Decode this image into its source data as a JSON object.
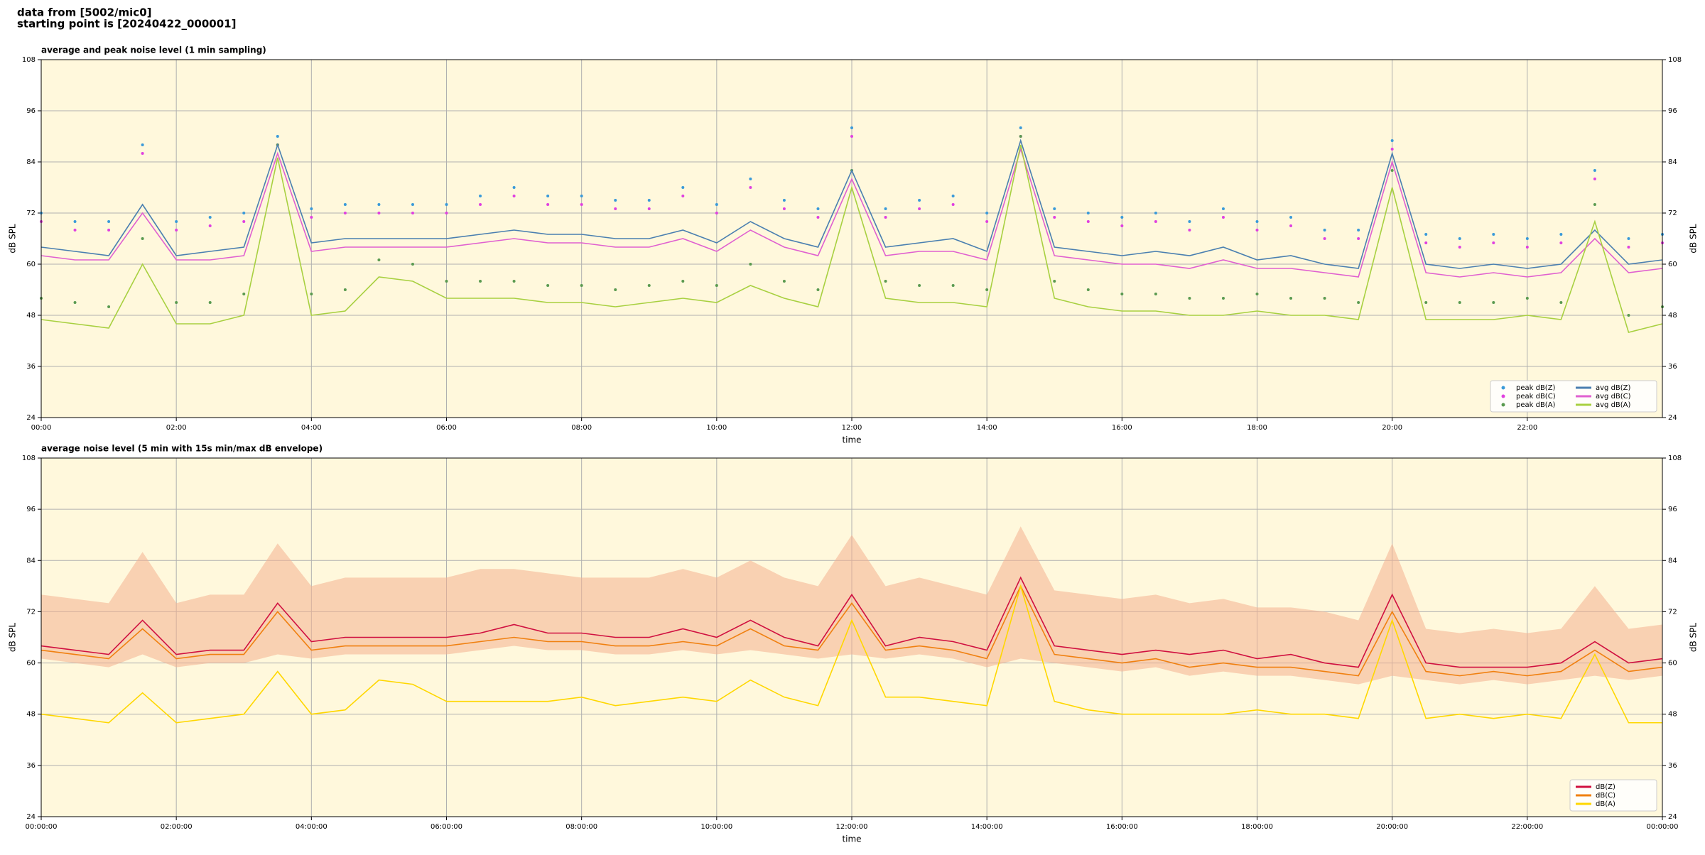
{
  "title": [
    "data from [5002/mic0]",
    "starting point is [20240422_000001]"
  ],
  "chart_data": [
    {
      "type": "line",
      "title": "average and peak noise level (1 min sampling)",
      "xlabel": "time",
      "ylabel": "dB SPL",
      "xlim": [
        0,
        24
      ],
      "ylim": [
        24,
        108
      ],
      "yticks": [
        24,
        36,
        48,
        60,
        72,
        84,
        96,
        108
      ],
      "xticks": [
        {
          "value": 0,
          "label": "00:00"
        },
        {
          "value": 2,
          "label": "02:00"
        },
        {
          "value": 4,
          "label": "04:00"
        },
        {
          "value": 6,
          "label": "06:00"
        },
        {
          "value": 8,
          "label": "08:00"
        },
        {
          "value": 10,
          "label": "10:00"
        },
        {
          "value": 12,
          "label": "12:00"
        },
        {
          "value": 14,
          "label": "14:00"
        },
        {
          "value": 16,
          "label": "16:00"
        },
        {
          "value": 18,
          "label": "18:00"
        },
        {
          "value": 20,
          "label": "20:00"
        },
        {
          "value": 22,
          "label": "22:00"
        }
      ],
      "grid": true,
      "legend": "lower right",
      "legend_columns": 2,
      "background": "#fff8dc",
      "x": [
        0,
        0.5,
        1,
        1.5,
        2,
        2.5,
        3,
        3.5,
        4,
        4.5,
        5,
        5.5,
        6,
        6.5,
        7,
        7.5,
        8,
        8.5,
        9,
        9.5,
        10,
        10.5,
        11,
        11.5,
        12,
        12.5,
        13,
        13.5,
        14,
        14.5,
        15,
        15.5,
        16,
        16.5,
        17,
        17.5,
        18,
        18.5,
        19,
        19.5,
        20,
        20.5,
        21,
        21.5,
        22,
        22.5,
        23,
        23.5,
        24
      ],
      "series": [
        {
          "name": "peak dB(Z)",
          "style": "dots",
          "color": "#3a9ad9",
          "values": [
            72,
            70,
            70,
            88,
            70,
            71,
            72,
            90,
            73,
            74,
            74,
            74,
            74,
            76,
            78,
            76,
            76,
            75,
            75,
            78,
            74,
            80,
            75,
            73,
            92,
            73,
            75,
            76,
            72,
            92,
            73,
            72,
            71,
            72,
            70,
            73,
            70,
            71,
            68,
            68,
            89,
            67,
            66,
            67,
            66,
            67,
            82,
            66,
            67
          ]
        },
        {
          "name": "peak dB(C)",
          "style": "dots",
          "color": "#e040e0",
          "values": [
            70,
            68,
            68,
            86,
            68,
            69,
            70,
            88,
            71,
            72,
            72,
            72,
            72,
            74,
            76,
            74,
            74,
            73,
            73,
            76,
            72,
            78,
            73,
            71,
            90,
            71,
            73,
            74,
            70,
            90,
            71,
            70,
            69,
            70,
            68,
            71,
            68,
            69,
            66,
            66,
            87,
            65,
            64,
            65,
            64,
            65,
            80,
            64,
            65
          ]
        },
        {
          "name": "peak dB(A)",
          "style": "dots",
          "color": "#5a9a50",
          "values": [
            52,
            51,
            50,
            66,
            51,
            51,
            53,
            88,
            53,
            54,
            61,
            60,
            56,
            56,
            56,
            55,
            55,
            54,
            55,
            56,
            55,
            60,
            56,
            54,
            82,
            56,
            55,
            55,
            54,
            90,
            56,
            54,
            53,
            53,
            52,
            52,
            53,
            52,
            52,
            51,
            82,
            51,
            51,
            51,
            52,
            51,
            74,
            48,
            50
          ]
        },
        {
          "name": "avg dB(Z)",
          "style": "line",
          "color": "#4a7fb0",
          "values": [
            64,
            63,
            62,
            74,
            62,
            63,
            64,
            88,
            65,
            66,
            66,
            66,
            66,
            67,
            68,
            67,
            67,
            66,
            66,
            68,
            65,
            70,
            66,
            64,
            82,
            64,
            65,
            66,
            63,
            89,
            64,
            63,
            62,
            63,
            62,
            64,
            61,
            62,
            60,
            59,
            86,
            60,
            59,
            60,
            59,
            60,
            68,
            60,
            61
          ]
        },
        {
          "name": "avg dB(C)",
          "style": "line",
          "color": "#e060d0",
          "values": [
            62,
            61,
            61,
            72,
            61,
            61,
            62,
            86,
            63,
            64,
            64,
            64,
            64,
            65,
            66,
            65,
            65,
            64,
            64,
            66,
            63,
            68,
            64,
            62,
            80,
            62,
            63,
            63,
            61,
            87,
            62,
            61,
            60,
            60,
            59,
            61,
            59,
            59,
            58,
            57,
            84,
            58,
            57,
            58,
            57,
            58,
            66,
            58,
            59
          ]
        },
        {
          "name": "avg dB(A)",
          "style": "line",
          "color": "#a8d040",
          "values": [
            47,
            46,
            45,
            60,
            46,
            46,
            48,
            85,
            48,
            49,
            57,
            56,
            52,
            52,
            52,
            51,
            51,
            50,
            51,
            52,
            51,
            55,
            52,
            50,
            78,
            52,
            51,
            51,
            50,
            88,
            52,
            50,
            49,
            49,
            48,
            48,
            49,
            48,
            48,
            47,
            78,
            47,
            47,
            47,
            48,
            47,
            70,
            44,
            46
          ]
        }
      ]
    },
    {
      "type": "line",
      "title": "average noise level (5 min with 15s min/max dB envelope)",
      "xlabel": "time",
      "ylabel": "dB SPL",
      "xlim": [
        0,
        24
      ],
      "ylim": [
        24,
        108
      ],
      "yticks": [
        24,
        36,
        48,
        60,
        72,
        84,
        96,
        108
      ],
      "xticks": [
        {
          "value": 0,
          "label": "00:00:00"
        },
        {
          "value": 2,
          "label": "02:00:00"
        },
        {
          "value": 4,
          "label": "04:00:00"
        },
        {
          "value": 6,
          "label": "06:00:00"
        },
        {
          "value": 8,
          "label": "08:00:00"
        },
        {
          "value": 10,
          "label": "10:00:00"
        },
        {
          "value": 12,
          "label": "12:00:00"
        },
        {
          "value": 14,
          "label": "14:00:00"
        },
        {
          "value": 16,
          "label": "16:00:00"
        },
        {
          "value": 18,
          "label": "18:00:00"
        },
        {
          "value": 20,
          "label": "20:00:00"
        },
        {
          "value": 22,
          "label": "22:00:00"
        },
        {
          "value": 24,
          "label": "00:00:00"
        }
      ],
      "grid": true,
      "legend": "lower right",
      "legend_columns": 1,
      "background": "#fff8dc",
      "x": [
        0,
        0.5,
        1,
        1.5,
        2,
        2.5,
        3,
        3.5,
        4,
        4.5,
        5,
        5.5,
        6,
        6.5,
        7,
        7.5,
        8,
        8.5,
        9,
        9.5,
        10,
        10.5,
        11,
        11.5,
        12,
        12.5,
        13,
        13.5,
        14,
        14.5,
        15,
        15.5,
        16,
        16.5,
        17,
        17.5,
        18,
        18.5,
        19,
        19.5,
        20,
        20.5,
        21,
        21.5,
        22,
        22.5,
        23,
        23.5,
        24
      ],
      "envelope": {
        "color": "#f4b090",
        "upper": [
          76,
          75,
          74,
          86,
          74,
          76,
          76,
          88,
          78,
          80,
          80,
          80,
          80,
          82,
          82,
          81,
          80,
          80,
          80,
          82,
          80,
          84,
          80,
          78,
          90,
          78,
          80,
          78,
          76,
          92,
          77,
          76,
          75,
          76,
          74,
          75,
          73,
          73,
          72,
          70,
          88,
          68,
          67,
          68,
          67,
          68,
          78,
          68,
          69
        ],
        "lower": [
          61,
          60,
          59,
          62,
          59,
          60,
          60,
          62,
          61,
          62,
          62,
          62,
          62,
          63,
          64,
          63,
          63,
          62,
          62,
          63,
          62,
          63,
          62,
          61,
          62,
          61,
          62,
          61,
          59,
          61,
          60,
          59,
          58,
          59,
          57,
          58,
          57,
          57,
          56,
          55,
          57,
          56,
          55,
          56,
          55,
          56,
          57,
          56,
          57
        ]
      },
      "series": [
        {
          "name": "dB(Z)",
          "style": "line",
          "color": "#d01040",
          "values": [
            64,
            63,
            62,
            70,
            62,
            63,
            63,
            74,
            65,
            66,
            66,
            66,
            66,
            67,
            69,
            67,
            67,
            66,
            66,
            68,
            66,
            70,
            66,
            64,
            76,
            64,
            66,
            65,
            63,
            80,
            64,
            63,
            62,
            63,
            62,
            63,
            61,
            62,
            60,
            59,
            76,
            60,
            59,
            59,
            59,
            60,
            65,
            60,
            61
          ]
        },
        {
          "name": "dB(C)",
          "style": "line",
          "color": "#f08010",
          "values": [
            63,
            62,
            61,
            68,
            61,
            62,
            62,
            72,
            63,
            64,
            64,
            64,
            64,
            65,
            66,
            65,
            65,
            64,
            64,
            65,
            64,
            68,
            64,
            63,
            74,
            63,
            64,
            63,
            61,
            78,
            62,
            61,
            60,
            61,
            59,
            60,
            59,
            59,
            58,
            57,
            72,
            58,
            57,
            58,
            57,
            58,
            63,
            58,
            59
          ]
        },
        {
          "name": "dB(A)",
          "style": "line",
          "color": "#ffd700",
          "values": [
            48,
            47,
            46,
            53,
            46,
            47,
            48,
            58,
            48,
            49,
            56,
            55,
            51,
            51,
            51,
            51,
            52,
            50,
            51,
            52,
            51,
            56,
            52,
            50,
            70,
            52,
            52,
            51,
            50,
            78,
            51,
            49,
            48,
            48,
            48,
            48,
            49,
            48,
            48,
            47,
            70,
            47,
            48,
            47,
            48,
            47,
            62,
            46,
            46
          ]
        }
      ]
    }
  ]
}
